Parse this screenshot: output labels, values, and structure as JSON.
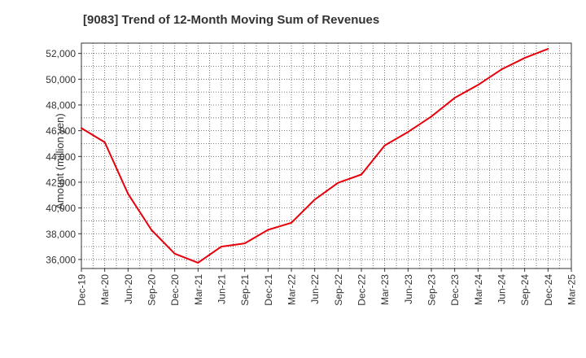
{
  "chart_data": {
    "type": "line",
    "title": "[9083]  Trend of 12-Month Moving Sum of Revenues",
    "xlabel": "",
    "ylabel": "Amount (million yen)",
    "categories": [
      "Dec-19",
      "Mar-20",
      "Jun-20",
      "Sep-20",
      "Dec-20",
      "Mar-21",
      "Jun-21",
      "Sep-21",
      "Dec-21",
      "Mar-22",
      "Jun-22",
      "Sep-22",
      "Dec-22",
      "Mar-23",
      "Jun-23",
      "Sep-23",
      "Dec-23",
      "Mar-24",
      "Jun-24",
      "Sep-24",
      "Dec-24",
      "Mar-25"
    ],
    "series": [
      {
        "name": "",
        "color": "#e8000b",
        "values": [
          46200,
          45100,
          41100,
          38300,
          36450,
          35750,
          37000,
          37250,
          38300,
          38850,
          40650,
          41950,
          42600,
          44850,
          45900,
          47100,
          48550,
          49550,
          50750,
          51650,
          52350,
          null
        ]
      }
    ],
    "ylim": [
      35300,
      52800
    ],
    "yticks": [
      36000,
      38000,
      40000,
      42000,
      44000,
      46000,
      48000,
      50000,
      52000
    ],
    "ytick_labels": [
      "36,000",
      "38,000",
      "40,000",
      "42,000",
      "44,000",
      "46,000",
      "48,000",
      "50,000",
      "52,000"
    ],
    "grid": true,
    "legend": "none"
  }
}
